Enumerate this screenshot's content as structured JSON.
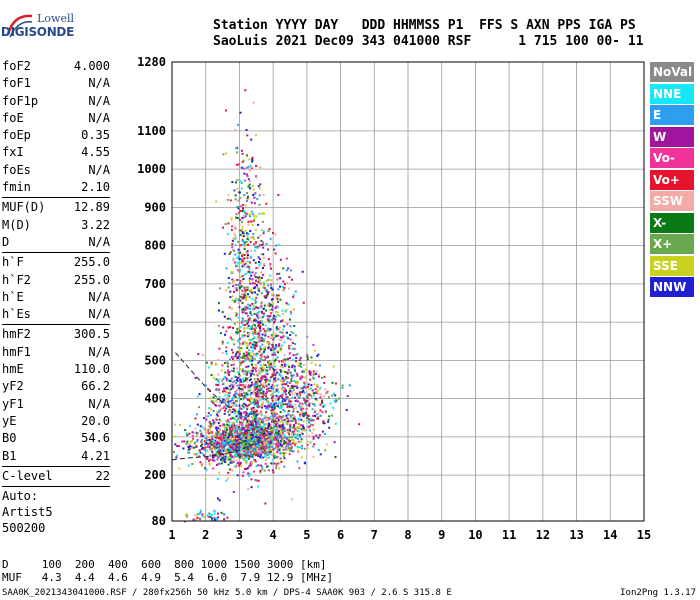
{
  "logo": {
    "line1": "Lowell",
    "line2": "DIGISONDE"
  },
  "header": {
    "line1": "Station YYYY DAY   DDD HHMMSS P1  FFS S AXN PPS IGA PS",
    "line2": "SaoLuis 2021 Dec09 343 041000 RSF      1 715 100 00- 11"
  },
  "params": [
    {
      "label": "foF2",
      "value": "4.000"
    },
    {
      "label": "foF1",
      "value": "N/A"
    },
    {
      "label": "foF1p",
      "value": "N/A"
    },
    {
      "label": "foE",
      "value": "N/A"
    },
    {
      "label": "foEp",
      "value": "0.35"
    },
    {
      "label": "fxI",
      "value": "4.55"
    },
    {
      "label": "foEs",
      "value": "N/A"
    },
    {
      "label": "fmin",
      "value": "2.10"
    },
    {
      "divider": true
    },
    {
      "label": "MUF(D)",
      "value": "12.89"
    },
    {
      "label": "M(D)",
      "value": "3.22"
    },
    {
      "label": "D",
      "value": "N/A"
    },
    {
      "divider": true
    },
    {
      "label": "h`F",
      "value": "255.0"
    },
    {
      "label": "h`F2",
      "value": "255.0"
    },
    {
      "label": "h`E",
      "value": "N/A"
    },
    {
      "label": "h`Es",
      "value": "N/A"
    },
    {
      "divider": true
    },
    {
      "label": "hmF2",
      "value": "300.5"
    },
    {
      "label": "hmF1",
      "value": "N/A"
    },
    {
      "label": "hmE",
      "value": "110.0"
    },
    {
      "label": "yF2",
      "value": "66.2"
    },
    {
      "label": "yF1",
      "value": "N/A"
    },
    {
      "label": "yE",
      "value": "20.0"
    },
    {
      "label": "B0",
      "value": "54.6"
    },
    {
      "label": "B1",
      "value": "4.21"
    },
    {
      "divider": true
    },
    {
      "label": "C-level",
      "value": "22"
    },
    {
      "divider": true
    },
    {
      "text": "Auto:"
    },
    {
      "text": "Artist5"
    },
    {
      "text": "500200"
    }
  ],
  "legend": [
    {
      "label": "NoVal",
      "color": "#8a8a8a"
    },
    {
      "label": "NNE",
      "color": "#16e6f5"
    },
    {
      "label": "E",
      "color": "#2e9ef0"
    },
    {
      "label": "W",
      "color": "#a0149e"
    },
    {
      "label": "Vo-",
      "color": "#f0339a"
    },
    {
      "label": "Vo+",
      "color": "#e6132e"
    },
    {
      "label": "SSW",
      "color": "#f4aaa6"
    },
    {
      "label": "X-",
      "color": "#0a7a16"
    },
    {
      "label": "X+",
      "color": "#6aa850"
    },
    {
      "label": "SSE",
      "color": "#c8d21e"
    },
    {
      "label": "NNW",
      "color": "#2020d2"
    }
  ],
  "dmuf": {
    "d_line": "D     100  200  400  600  800 1000 1500 3000 [km]",
    "muf_line": "MUF   4.3  4.4  4.6  4.9  5.4  6.0  7.9 12.9 [MHz]"
  },
  "footer": "SAA0K_2021343041000.RSF / 280fx256h 50 kHz 5.0 km / DPS-4 SAA0K 903 / 2.6 S 315.8 E",
  "version": "Ion2Png 1.3.17",
  "chart_data": {
    "type": "scatter",
    "x_ticks": [
      1,
      2,
      3,
      4,
      5,
      6,
      7,
      8,
      9,
      10,
      11,
      12,
      13,
      14,
      15
    ],
    "y_ticks": [
      80,
      200,
      300,
      400,
      500,
      600,
      700,
      800,
      900,
      1000,
      1100,
      1280
    ],
    "xlim": [
      1,
      15
    ],
    "ylim": [
      80,
      1280
    ],
    "grid": true,
    "legend_position": "right",
    "clusters": [
      {
        "x": 3.5,
        "y": 300,
        "sx": 0.7,
        "sy": 30,
        "n": 900
      },
      {
        "x": 2.9,
        "y": 280,
        "sx": 0.6,
        "sy": 20,
        "n": 500
      },
      {
        "x": 3.4,
        "y": 420,
        "sx": 0.5,
        "sy": 110,
        "n": 700
      },
      {
        "x": 3.3,
        "y": 620,
        "sx": 0.35,
        "sy": 150,
        "n": 500
      },
      {
        "x": 3.1,
        "y": 880,
        "sx": 0.25,
        "sy": 120,
        "n": 200
      },
      {
        "x": 4.7,
        "y": 410,
        "sx": 0.6,
        "sy": 55,
        "n": 450
      },
      {
        "x": 4.0,
        "y": 560,
        "sx": 0.35,
        "sy": 130,
        "n": 300
      },
      {
        "x": 2.6,
        "y": 380,
        "sx": 0.35,
        "sy": 90,
        "n": 220
      },
      {
        "x": 1.9,
        "y": 280,
        "sx": 0.4,
        "sy": 35,
        "n": 120
      },
      {
        "x": 2.0,
        "y": 95,
        "sx": 0.3,
        "sy": 8,
        "n": 40
      }
    ],
    "traces": [
      {
        "x": [
          1.0,
          1.5,
          2.0,
          2.5,
          3.0,
          3.5,
          3.9
        ],
        "y": [
          240,
          245,
          248,
          255,
          265,
          285,
          330
        ]
      },
      {
        "x": [
          1.1,
          1.6,
          2.0,
          2.5,
          3.0,
          3.4
        ],
        "y": [
          520,
          470,
          430,
          390,
          360,
          330
        ]
      }
    ]
  }
}
